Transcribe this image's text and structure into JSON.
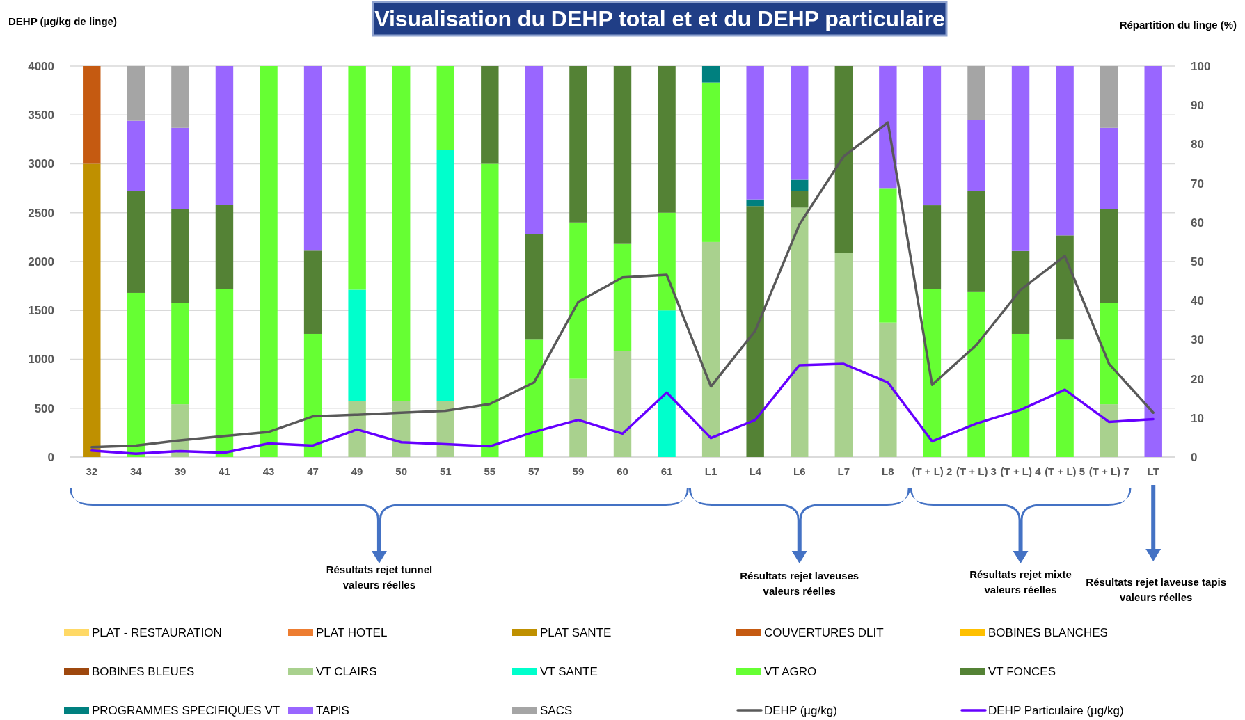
{
  "chart_data": {
    "type": "bar",
    "stacked": true,
    "title": "Visualisation du DEHP total et  et du DEHP particulaire",
    "ylabel": "DEHP (µg/kg de linge)",
    "y2label": "Répartition du linge (%)",
    "categories": [
      "32",
      "34",
      "39",
      "41",
      "43",
      "47",
      "49",
      "50",
      "51",
      "55",
      "57",
      "59",
      "60",
      "61",
      "L1",
      "L4",
      "L6",
      "L7",
      "L8",
      "(T + L) 2",
      "(T + L) 3",
      "(T + L) 4",
      "(T + L) 5",
      "(T + L) 7",
      "LT"
    ],
    "ylim": [
      0,
      4000
    ],
    "yticks": [
      0,
      500,
      1000,
      1500,
      2000,
      2500,
      3000,
      3500,
      4000
    ],
    "y2lim": [
      0,
      100
    ],
    "y2ticks": [
      0,
      10,
      20,
      30,
      40,
      50,
      60,
      70,
      80,
      90,
      100
    ],
    "grid": "y",
    "legend": "bottom",
    "annotations": [
      "Résultats rejet tunnel\nvaleurs réelles",
      "Résultats rejet laveuses\nvaleurs réelles",
      "Résultats rejet mixte\nvaleurs réelles",
      "Résultats rejet laveuse tapis\nvaleurs réelles"
    ],
    "series": [
      {
        "name": "PLAT - RESTAURATION",
        "color": "#ffd966",
        "axis": "y2",
        "values": [
          null,
          null,
          null,
          null,
          null,
          null,
          null,
          null,
          null,
          null,
          null,
          null,
          null,
          null,
          null,
          null,
          null,
          null,
          null,
          null,
          null,
          null,
          null,
          null,
          null
        ]
      },
      {
        "name": "PLAT HOTEL",
        "color": "#ed7d31",
        "axis": "y2",
        "values": [
          null,
          null,
          null,
          null,
          null,
          null,
          null,
          null,
          null,
          null,
          null,
          null,
          null,
          null,
          null,
          null,
          null,
          null,
          null,
          null,
          null,
          null,
          null,
          null,
          null
        ]
      },
      {
        "name": "PLAT SANTE",
        "color": "#bf9000",
        "axis": "y2",
        "values": [
          75,
          null,
          null,
          null,
          null,
          null,
          null,
          null,
          null,
          null,
          null,
          null,
          null,
          null,
          null,
          null,
          null,
          null,
          null,
          null,
          null,
          null,
          null,
          null,
          null
        ]
      },
      {
        "name": "COUVERTURES DLIT",
        "color": "#c55a11",
        "axis": "y2",
        "values": [
          25,
          null,
          null,
          null,
          null,
          null,
          null,
          null,
          null,
          null,
          null,
          null,
          null,
          null,
          null,
          null,
          null,
          null,
          null,
          null,
          null,
          null,
          null,
          null,
          null
        ]
      },
      {
        "name": "BOBINES BLANCHES",
        "color": "#ffc000",
        "axis": "y2",
        "values": [
          null,
          null,
          null,
          null,
          null,
          null,
          null,
          null,
          null,
          null,
          null,
          null,
          null,
          null,
          null,
          null,
          null,
          null,
          null,
          null,
          null,
          null,
          null,
          null,
          null
        ]
      },
      {
        "name": "BOBINES BLEUES",
        "color": "#9e480e",
        "axis": "y2",
        "values": [
          null,
          null,
          null,
          null,
          null,
          null,
          null,
          null,
          null,
          null,
          null,
          null,
          null,
          null,
          null,
          null,
          null,
          null,
          null,
          null,
          null,
          null,
          null,
          null,
          null
        ]
      },
      {
        "name": "VT CLAIRS",
        "color": "#a9d18e",
        "axis": "y2",
        "values": [
          null,
          null,
          13.5,
          null,
          null,
          null,
          14.3,
          14.3,
          14.3,
          null,
          null,
          20,
          27.2,
          null,
          55,
          null,
          63.8,
          52.3,
          34.4,
          null,
          null,
          null,
          null,
          13.5,
          null
        ]
      },
      {
        "name": "VT SANTE",
        "color": "#00ffcc",
        "axis": "y2",
        "values": [
          null,
          null,
          null,
          null,
          null,
          null,
          28.5,
          null,
          64.2,
          null,
          null,
          null,
          null,
          37.5,
          null,
          null,
          null,
          null,
          null,
          null,
          null,
          null,
          null,
          null,
          null
        ]
      },
      {
        "name": "VT AGRO",
        "color": "#66ff33",
        "axis": "y2",
        "values": [
          null,
          42,
          26,
          43,
          100,
          31.5,
          57.2,
          85.7,
          21.5,
          75,
          30,
          40,
          27.3,
          25,
          40.8,
          null,
          null,
          null,
          34.4,
          42.9,
          42.2,
          31.5,
          30,
          26,
          null
        ]
      },
      {
        "name": "VT FONCES",
        "color": "#548235",
        "axis": "y2",
        "values": [
          null,
          26,
          24,
          21.5,
          null,
          21.3,
          null,
          null,
          null,
          25,
          27,
          40,
          45.5,
          37.5,
          null,
          64.2,
          4.2,
          47.7,
          null,
          21.5,
          25.9,
          21.2,
          26.7,
          24,
          null
        ]
      },
      {
        "name": "PROGRAMMES SPECIFIQUES VT",
        "color": "#00807f",
        "axis": "y2",
        "values": [
          null,
          null,
          null,
          null,
          null,
          null,
          null,
          null,
          null,
          null,
          null,
          null,
          null,
          null,
          4.2,
          1.7,
          2.9,
          null,
          null,
          null,
          null,
          null,
          null,
          null,
          null
        ]
      },
      {
        "name": "TAPIS",
        "color": "#9966ff",
        "axis": "y2",
        "values": [
          null,
          18,
          20.7,
          35.5,
          null,
          47.2,
          null,
          null,
          null,
          null,
          43,
          null,
          null,
          null,
          null,
          34.1,
          29.1,
          null,
          31.2,
          35.6,
          18.2,
          47.3,
          43.3,
          20.7,
          100
        ]
      },
      {
        "name": "SACS",
        "color": "#a5a5a5",
        "axis": "y2",
        "values": [
          null,
          14,
          15.8,
          null,
          null,
          null,
          null,
          null,
          null,
          null,
          null,
          null,
          null,
          null,
          null,
          null,
          null,
          null,
          null,
          null,
          13.7,
          null,
          null,
          15.8,
          null
        ]
      },
      {
        "name": "DEHP (µg/kg)",
        "type": "line",
        "color": "#595959",
        "values": [
          102,
          118,
          171,
          216,
          257,
          416,
          433,
          453,
          473,
          543,
          763,
          1587,
          1838,
          1864,
          722,
          1291,
          2380,
          3076,
          3423,
          738,
          1146,
          1711,
          2058,
          953,
          454
        ]
      },
      {
        "name": "DEHP Particulaire  (µg/kg)",
        "type": "line",
        "color": "#6600ff",
        "values": [
          65,
          33,
          61,
          45,
          139,
          118,
          282,
          151,
          131,
          110,
          257,
          380,
          239,
          660,
          194,
          379,
          940,
          953,
          763,
          161,
          342,
          483,
          689,
          359,
          388
        ]
      }
    ]
  }
}
